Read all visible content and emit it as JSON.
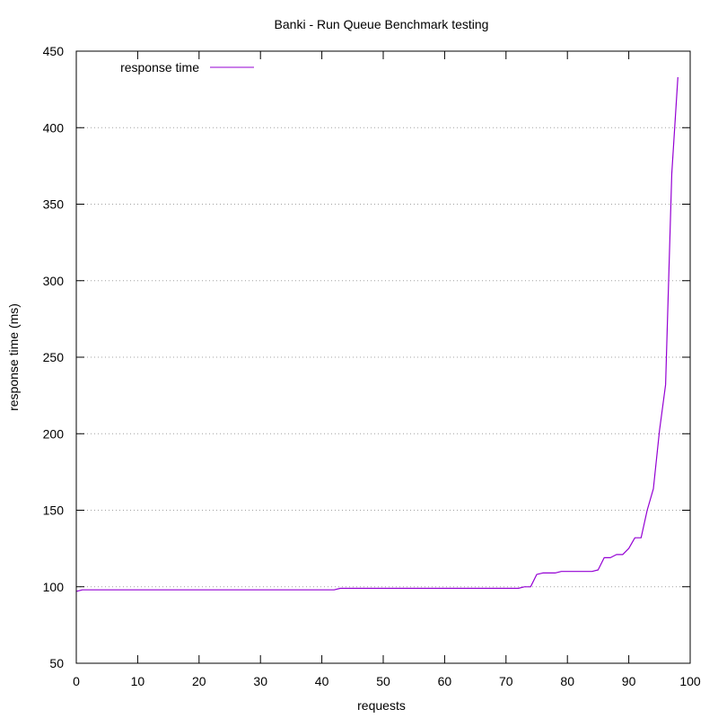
{
  "chart_data": {
    "type": "line",
    "title": "Banki - Run Queue Benchmark testing",
    "xlabel": "requests",
    "ylabel": "response time (ms)",
    "xlim": [
      0,
      100
    ],
    "ylim": [
      50,
      450
    ],
    "x_ticks": [
      0,
      10,
      20,
      30,
      40,
      50,
      60,
      70,
      80,
      90,
      100
    ],
    "y_ticks": [
      50,
      100,
      150,
      200,
      250,
      300,
      350,
      400,
      450
    ],
    "grid": "horizontal dotted",
    "legend": {
      "position": "top-left",
      "entries": [
        "response time"
      ]
    },
    "series": [
      {
        "name": "response time",
        "color": "#9400d3",
        "x": [
          0,
          1,
          2,
          10,
          20,
          30,
          40,
          42,
          43,
          50,
          60,
          70,
          72,
          73,
          74,
          75,
          76,
          78,
          79,
          80,
          82,
          84,
          85,
          86,
          87,
          88,
          89,
          90,
          91,
          92,
          93,
          94,
          95,
          96,
          97,
          98
        ],
        "y": [
          97,
          98,
          98,
          98,
          98,
          98,
          98,
          98,
          99,
          99,
          99,
          99,
          99,
          100,
          100,
          108,
          109,
          109,
          110,
          110,
          110,
          110,
          111,
          119,
          119,
          121,
          121,
          125,
          132,
          132,
          150,
          164,
          202,
          232,
          370,
          433
        ]
      }
    ]
  }
}
